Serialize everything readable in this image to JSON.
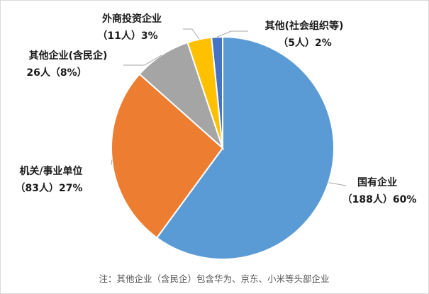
{
  "chart_data": {
    "type": "pie",
    "title": "",
    "start_angle_deg": 0,
    "direction": "clockwise",
    "slices": [
      {
        "label": "国有企业",
        "count_text": "（188人）60%",
        "count": 188,
        "percent": 60,
        "color": "#5b9bd5"
      },
      {
        "label": "机关/事业单位",
        "count_text": "（83人）27%",
        "count": 83,
        "percent": 27,
        "color": "#ed7d31"
      },
      {
        "label": "其他企业(含民企)",
        "count_text": "26人（8%）",
        "count": 26,
        "percent": 8,
        "color": "#a5a5a5"
      },
      {
        "label": "外商投资企业",
        "count_text": "（11人）3%",
        "count": 11,
        "percent": 3,
        "color": "#ffc000"
      },
      {
        "label": "其他(社会组织等)",
        "count_text": "（5人）2%",
        "count": 5,
        "percent": 2,
        "color": "#4472c4"
      }
    ],
    "footnote": "注：其他企业（含民企）包含华为、京东、小米等头部企业"
  }
}
